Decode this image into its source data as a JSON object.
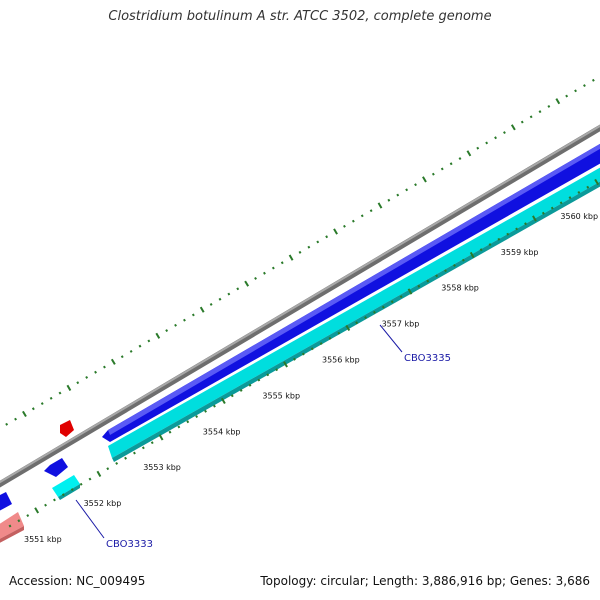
{
  "title": "Clostridium botulinum A str. ATCC 3502, complete genome",
  "footer": {
    "accession": "Accession: NC_009495",
    "stats": "Topology: circular; Length: 3,886,916 bp; Genes: 3,686"
  },
  "scale_ticks": [
    {
      "label": "3551 kbp"
    },
    {
      "label": "3552 kbp"
    },
    {
      "label": "3553 kbp"
    },
    {
      "label": "3554 kbp"
    },
    {
      "label": "3555 kbp"
    },
    {
      "label": "3556 kbp"
    },
    {
      "label": "3557 kbp"
    },
    {
      "label": "3558 kbp"
    },
    {
      "label": "3559 kbp"
    },
    {
      "label": "3560 kbp"
    }
  ],
  "gene_labels": [
    {
      "name": "CBO3333"
    },
    {
      "name": "CBO3335"
    }
  ],
  "colors": {
    "backbone": "#8c8c8c",
    "forward_gene": "#1010e0",
    "reverse_gene": "#00dede",
    "rna_gene": "#ee0000",
    "pseudo_gene": "#f08a8a",
    "tick": "#2a7a2a",
    "label_line": "#1a1aa6"
  }
}
